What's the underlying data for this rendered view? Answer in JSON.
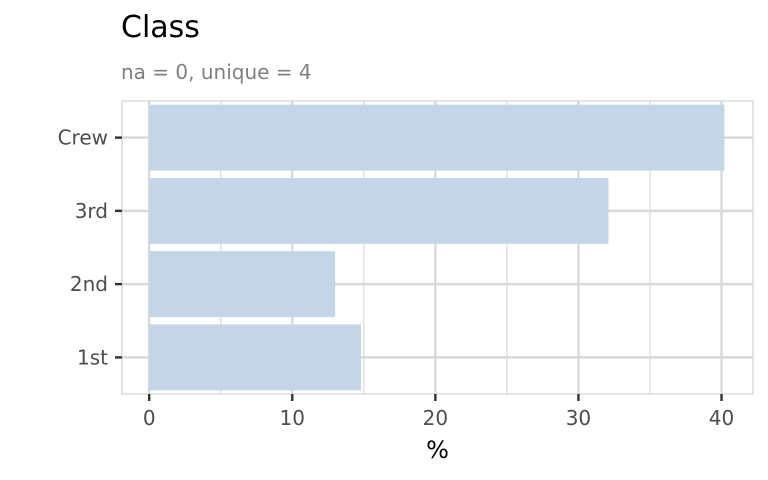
{
  "chart_data": {
    "type": "bar",
    "orientation": "horizontal",
    "title": "Class",
    "subtitle": "na = 0, unique = 4",
    "xlabel": "%",
    "ylabel": "",
    "categories": [
      "1st",
      "2nd",
      "3rd",
      "Crew"
    ],
    "values": [
      14.8,
      13.0,
      32.1,
      40.2
    ],
    "xlim": [
      -1.9,
      42.2
    ],
    "xticks": [
      0,
      10,
      20,
      30,
      40
    ],
    "xtick_labels": [
      "0",
      "10",
      "20",
      "30",
      "40"
    ],
    "grid": true,
    "bar_color": "#c3d5e7",
    "grid_color": "#d9d9d9",
    "panel_border_color": "#d9d9d9"
  }
}
